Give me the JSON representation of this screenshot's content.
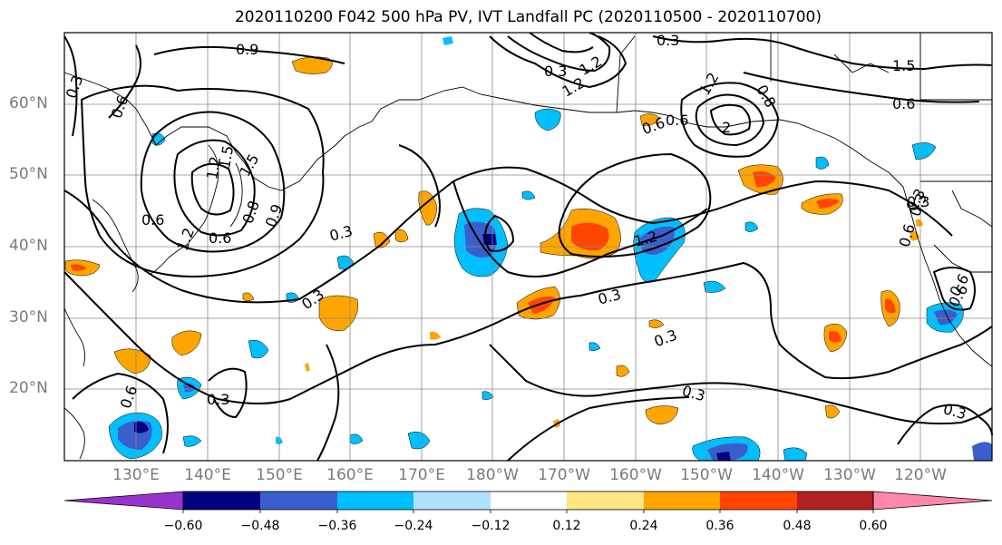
{
  "title": "2020110200 F042 500 hPa PV, IVT Landfall PC (2020110500 - 2020110700)",
  "lat_labels": [
    "60°N",
    "50°N",
    "40°N",
    "30°N",
    "20°N"
  ],
  "lon_labels": [
    "130°E",
    "140°E",
    "150°E",
    "160°E",
    "170°E",
    "180°W",
    "170°W",
    "160°W",
    "150°W",
    "140°W",
    "130°W",
    "120°W"
  ],
  "contour_labels": [
    "0.9",
    "0.3",
    "0.3",
    "1.5",
    "0.6",
    "0.3",
    "0.6",
    "1.5",
    "1.2",
    "0.6",
    "0.8",
    "1.2",
    "0.6",
    "0.9",
    "0.3",
    "0.3",
    "1.2",
    "0.3",
    "0.3",
    "0.3",
    "0.6",
    "0.3",
    "0.6",
    "0.6",
    "0.3",
    "0.6",
    "1.2",
    "1.5",
    "2",
    "0.8",
    "0.6",
    "1.2",
    "1.2",
    "0.3",
    "0.6",
    "0.3",
    "0.3"
  ],
  "colorbar": {
    "ticks": [
      "−0.60",
      "−0.48",
      "−0.36",
      "−0.24",
      "−0.12",
      "0.12",
      "0.24",
      "0.36",
      "0.48",
      "0.60"
    ],
    "colors": {
      "under": "#9933cc",
      "bins": [
        "#000080",
        "#3a5fcd",
        "#00bfff",
        "#b0e2ff",
        "#ffffff",
        "#ffe680",
        "#ffa500",
        "#ff4500",
        "#b22222",
        "#ff88aa"
      ],
      "over": "#ff88aa"
    }
  },
  "map": {
    "extent": {
      "lon_min": 120,
      "lon_max": 250,
      "lat_min": 10,
      "lat_max": 70
    },
    "grid_spacing_deg": 10,
    "shading": "IVT landfall principal component regression",
    "contour_field": "500 hPa potential vorticity (PVU)"
  }
}
